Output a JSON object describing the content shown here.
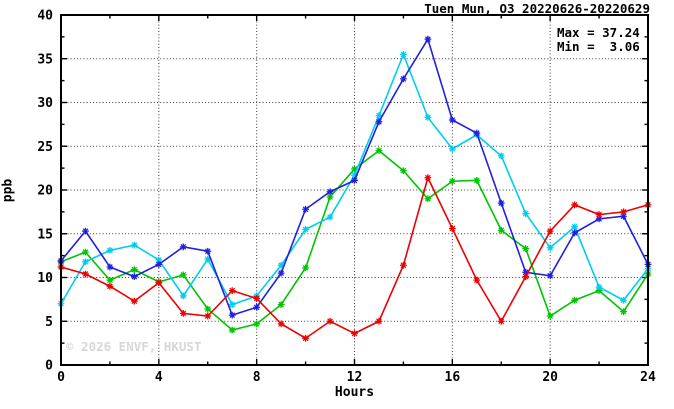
{
  "chart_data": {
    "type": "line",
    "title": "Tuen Mun, O3 20220626-20220629",
    "xlabel": "Hours",
    "ylabel": "ppb",
    "xlim": [
      0,
      24
    ],
    "ylim": [
      0,
      40
    ],
    "x_major_ticks": [
      0,
      4,
      8,
      12,
      16,
      20,
      24
    ],
    "x_minor_step": 2,
    "y_major_ticks": [
      0,
      5,
      10,
      15,
      20,
      25,
      30,
      35,
      40
    ],
    "y_minor_step": 2.5,
    "grid": "dotted-at-major-ticks",
    "legend": "none",
    "marker": "asterisk",
    "annotations": {
      "max": "Max = 37.24",
      "min": "Min =  3.06"
    },
    "max_value": 37.24,
    "min_value": 3.06,
    "watermark": "© 2026 ENVF, HKUST",
    "x": [
      0,
      1,
      2,
      3,
      4,
      5,
      6,
      7,
      8,
      9,
      10,
      11,
      12,
      13,
      14,
      15,
      16,
      17,
      18,
      19,
      20,
      21,
      22,
      23,
      24
    ],
    "series": [
      {
        "name": "green",
        "color": "#00c400",
        "values": [
          11.8,
          12.9,
          9.7,
          10.9,
          9.5,
          10.3,
          6.4,
          4.0,
          4.7,
          6.9,
          11.1,
          19.2,
          22.4,
          24.5,
          22.2,
          19.0,
          21.0,
          21.1,
          15.4,
          13.3,
          5.6,
          7.4,
          8.5,
          6.1,
          10.4
        ]
      },
      {
        "name": "cyan",
        "color": "#00cdee",
        "values": [
          7.0,
          11.8,
          13.1,
          13.7,
          12.0,
          7.9,
          12.1,
          6.9,
          7.9,
          11.4,
          15.5,
          16.9,
          21.7,
          28.5,
          35.5,
          28.3,
          24.7,
          26.3,
          23.9,
          17.3,
          13.4,
          15.8,
          8.9,
          7.4,
          11.0
        ]
      },
      {
        "name": "blue",
        "color": "#2020dd",
        "values": [
          11.9,
          15.3,
          11.2,
          10.1,
          11.5,
          13.5,
          13.0,
          5.7,
          6.6,
          10.5,
          17.8,
          19.8,
          21.1,
          27.8,
          32.7,
          37.24,
          28.0,
          26.5,
          18.5,
          10.6,
          10.2,
          15.1,
          16.7,
          17.0,
          11.5
        ]
      },
      {
        "name": "red",
        "color": "#ee0000",
        "values": [
          11.2,
          10.4,
          9.0,
          7.3,
          9.4,
          5.9,
          5.6,
          8.5,
          7.6,
          4.7,
          3.06,
          5.0,
          3.6,
          5.0,
          11.4,
          21.4,
          15.6,
          9.7,
          5.0,
          10.1,
          15.3,
          18.3,
          17.2,
          17.5,
          18.3
        ]
      }
    ]
  }
}
